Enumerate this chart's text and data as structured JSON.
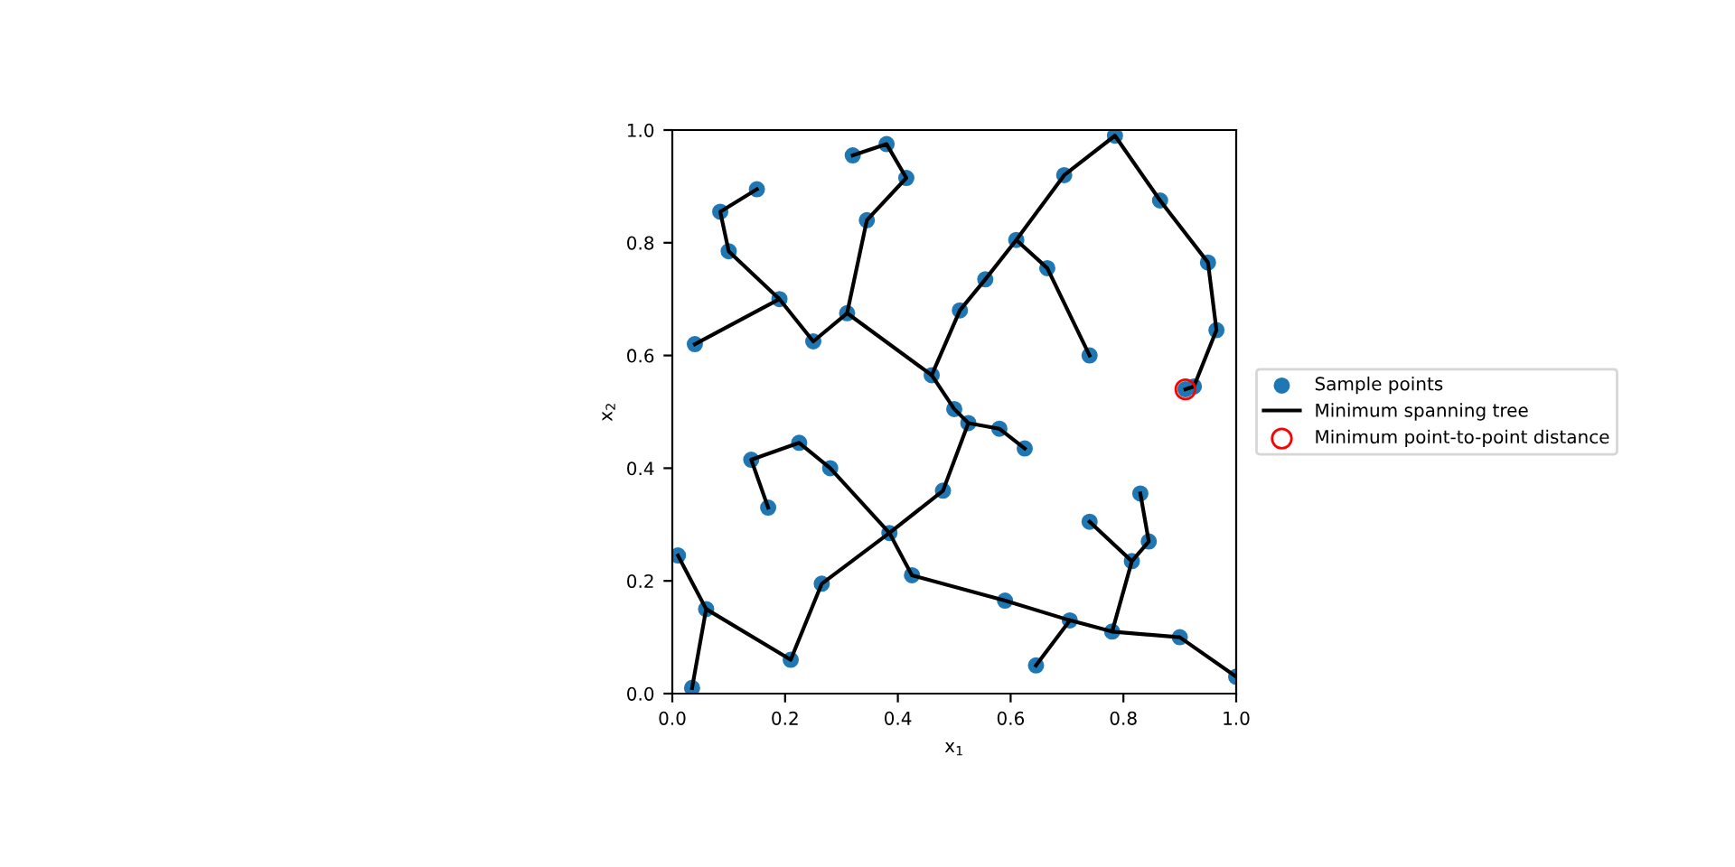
{
  "chart_data": {
    "type": "scatter",
    "xlabel": "x$_{1}$",
    "ylabel": "x$_{2}$",
    "xlim": [
      0,
      1
    ],
    "ylim": [
      0,
      1
    ],
    "xticks": [
      {
        "value": 0,
        "label": "0.0"
      },
      {
        "value": 0.2,
        "label": "0.2"
      },
      {
        "value": 0.4,
        "label": "0.4"
      },
      {
        "value": 0.6,
        "label": "0.6"
      },
      {
        "value": 0.8,
        "label": "0.8"
      },
      {
        "value": 1,
        "label": "1.0"
      }
    ],
    "yticks": [
      {
        "value": 0,
        "label": "0.0"
      },
      {
        "value": 0.2,
        "label": "0.2"
      },
      {
        "value": 0.4,
        "label": "0.4"
      },
      {
        "value": 0.6,
        "label": "0.6"
      },
      {
        "value": 0.8,
        "label": "0.8"
      },
      {
        "value": 1,
        "label": "1.0"
      }
    ],
    "legend": "right",
    "grid": false,
    "series": [
      {
        "name": "Sample points",
        "marker": "circle",
        "color": "#1f77b4",
        "x": [
          0.04,
          0.19,
          0.1,
          0.085,
          0.15,
          0.25,
          0.31,
          0.345,
          0.415,
          0.38,
          0.32,
          0.46,
          0.5,
          0.525,
          0.58,
          0.625,
          0.51,
          0.555,
          0.61,
          0.665,
          0.74,
          0.695,
          0.785,
          0.865,
          0.95,
          0.965,
          0.925,
          0.91,
          0.14,
          0.225,
          0.17,
          0.28,
          0.385,
          0.48,
          0.425,
          0.01,
          0.06,
          0.035,
          0.21,
          0.265,
          0.59,
          0.705,
          0.645,
          0.78,
          0.9,
          1.0,
          0.815,
          0.845,
          0.83,
          0.74
        ],
        "values": [
          0.62,
          0.7,
          0.785,
          0.855,
          0.895,
          0.625,
          0.675,
          0.84,
          0.915,
          0.975,
          0.955,
          0.565,
          0.505,
          0.48,
          0.47,
          0.435,
          0.68,
          0.735,
          0.805,
          0.755,
          0.6,
          0.92,
          0.99,
          0.875,
          0.765,
          0.645,
          0.545,
          0.54,
          0.415,
          0.445,
          0.33,
          0.4,
          0.285,
          0.36,
          0.21,
          0.245,
          0.15,
          0.01,
          0.06,
          0.195,
          0.165,
          0.13,
          0.05,
          0.11,
          0.1,
          0.03,
          0.235,
          0.27,
          0.355,
          0.305
        ]
      },
      {
        "name": "Minimum spanning tree",
        "type": "line",
        "marker": "none",
        "line_style": "solid",
        "color": "#000000",
        "x": [
          0.15,
          0.085,
          0.1,
          0.19,
          0.04,
          null,
          0.19,
          0.25,
          0.31,
          0.345,
          0.415,
          0.38,
          0.32,
          null,
          0.31,
          0.46,
          0.5,
          0.525,
          0.58,
          0.625,
          null,
          0.46,
          0.51,
          0.555,
          0.61,
          0.665,
          0.74,
          null,
          0.61,
          0.695,
          0.785,
          0.865,
          0.95,
          0.965,
          0.925,
          0.91,
          null,
          0.525,
          0.48,
          0.385,
          0.28,
          0.225,
          0.14,
          0.17,
          null,
          0.385,
          0.265,
          0.21,
          0.06,
          0.01,
          null,
          0.06,
          0.035,
          null,
          0.385,
          0.425,
          0.59,
          0.705,
          0.645,
          null,
          0.705,
          0.78,
          0.9,
          1.0,
          null,
          0.78,
          0.815,
          0.845,
          0.83,
          null,
          0.815,
          0.74
        ],
        "values": [
          0.895,
          0.855,
          0.785,
          0.7,
          0.62,
          null,
          0.7,
          0.625,
          0.675,
          0.84,
          0.915,
          0.975,
          0.955,
          null,
          0.675,
          0.565,
          0.505,
          0.48,
          0.47,
          0.435,
          null,
          0.565,
          0.68,
          0.735,
          0.805,
          0.755,
          0.6,
          null,
          0.805,
          0.92,
          0.99,
          0.875,
          0.765,
          0.645,
          0.545,
          0.54,
          null,
          0.48,
          0.36,
          0.285,
          0.4,
          0.445,
          0.415,
          0.33,
          null,
          0.285,
          0.195,
          0.06,
          0.15,
          0.245,
          null,
          0.15,
          0.01,
          null,
          0.285,
          0.21,
          0.165,
          0.13,
          0.05,
          null,
          0.13,
          0.11,
          0.1,
          0.03,
          null,
          0.11,
          0.235,
          0.27,
          0.355,
          null,
          0.235,
          0.305
        ]
      },
      {
        "name": "Minimum point-to-point distance",
        "marker": "circle",
        "color": "#ff0000",
        "x": [
          0.91
        ],
        "values": [
          0.54
        ]
      }
    ]
  }
}
